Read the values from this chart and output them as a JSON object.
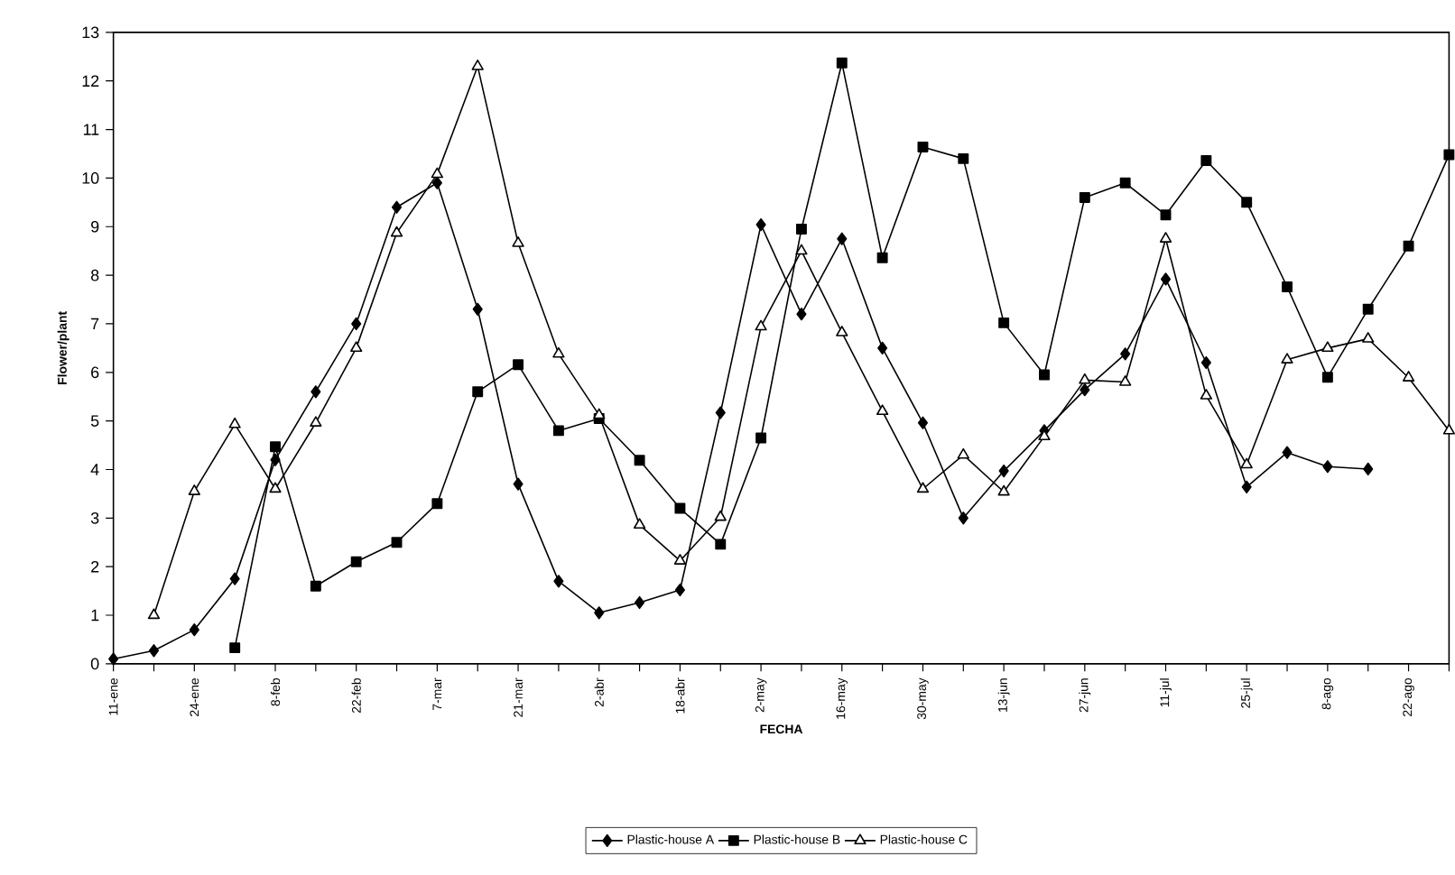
{
  "chart_data": {
    "type": "line",
    "xlabel": "FECHA",
    "ylabel": "Flower/plant",
    "categories": [
      "11-ene",
      null,
      "24-ene",
      null,
      "8-feb",
      null,
      "22-feb",
      null,
      "7-mar",
      null,
      "21-mar",
      null,
      "2-abr",
      null,
      "18-abr",
      null,
      "2-may",
      null,
      "16-may",
      null,
      "30-may",
      null,
      "13-jun",
      null,
      "27-jun",
      null,
      "11-jul",
      null,
      "25-jul",
      null,
      "8-ago",
      null,
      "22-ago",
      null
    ],
    "series": [
      {
        "name": "Plastic-house A",
        "color": "#000000",
        "marker": "diamond",
        "values": [
          0.1,
          0.27,
          0.7,
          1.75,
          4.2,
          5.6,
          7.0,
          9.4,
          9.9,
          7.3,
          3.7,
          1.7,
          1.05,
          1.26,
          1.52,
          5.17,
          9.04,
          7.2,
          8.75,
          6.5,
          4.96,
          3.0,
          3.97,
          4.8,
          5.64,
          6.38,
          7.92,
          6.2,
          3.64,
          4.35,
          4.06,
          4.01,
          null,
          null
        ]
      },
      {
        "name": "Plastic-house B",
        "color": "#000000",
        "marker": "square",
        "values": [
          null,
          null,
          null,
          0.33,
          4.47,
          1.6,
          2.1,
          2.5,
          3.3,
          5.6,
          6.16,
          4.8,
          5.05,
          4.19,
          3.2,
          2.46,
          4.65,
          8.95,
          12.37,
          8.36,
          10.64,
          10.4,
          7.02,
          5.95,
          9.6,
          9.9,
          9.24,
          10.36,
          9.5,
          7.76,
          5.9,
          7.3,
          8.6,
          10.48
        ]
      },
      {
        "name": "Plastic-house C",
        "color": "#000000",
        "marker": "triangle",
        "values": [
          null,
          1.0,
          3.55,
          4.93,
          3.6,
          4.96,
          6.5,
          8.87,
          10.08,
          12.3,
          8.66,
          6.38,
          5.12,
          2.86,
          2.12,
          3.02,
          6.94,
          8.5,
          6.82,
          5.2,
          3.6,
          4.3,
          3.54,
          4.68,
          5.84,
          5.8,
          8.75,
          5.52,
          4.1,
          6.26,
          6.5,
          6.69,
          5.89,
          4.8
        ]
      }
    ],
    "ylim": [
      0,
      13
    ],
    "yticks": [
      0,
      1,
      2,
      3,
      4,
      5,
      6,
      7,
      8,
      9,
      10,
      11,
      12,
      13
    ],
    "grid": false,
    "legend": "bottom"
  }
}
